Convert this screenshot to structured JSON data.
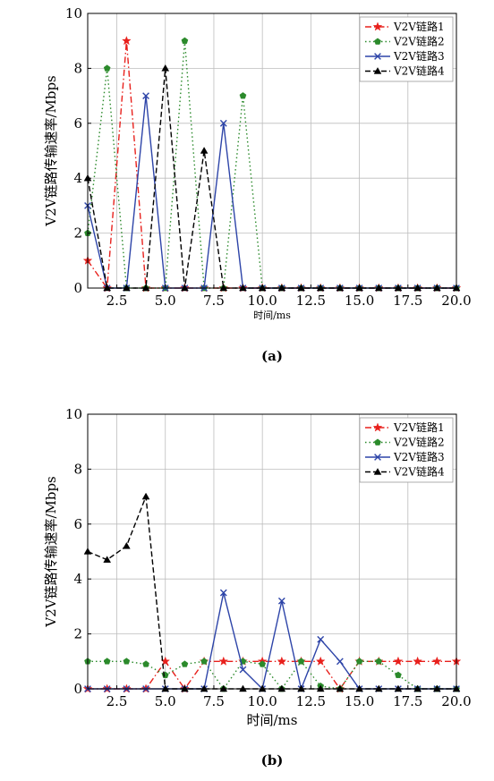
{
  "colors": {
    "series": [
      "#e8201c",
      "#2b8a2b",
      "#2d44a8",
      "#000000"
    ],
    "grid": "#bdbdbd",
    "axis": "#000000"
  },
  "chart_data": [
    {
      "id": "a",
      "type": "line",
      "panel_label": "(a)",
      "title": "",
      "xlabel": "时间/ms",
      "ylabel": "V2V链路传输速率/Mbps",
      "xlim": [
        1,
        20
      ],
      "ylim": [
        0,
        10
      ],
      "xticks": [
        2.5,
        5.0,
        7.5,
        10.0,
        12.5,
        15.0,
        17.5,
        20.0
      ],
      "xtick_labels": [
        "2.5",
        "5.0",
        "7.5",
        "10.0",
        "12.5",
        "15.0",
        "17.5",
        "20.0"
      ],
      "yticks": [
        0,
        2,
        4,
        6,
        8,
        10
      ],
      "ytick_labels": [
        "0",
        "2",
        "4",
        "6",
        "8",
        "10"
      ],
      "grid": true,
      "legend_position": "top-right",
      "series": [
        {
          "name": "V2V链路1",
          "marker": "star",
          "dash": "dashdot",
          "x": [
            1,
            2,
            3,
            4,
            5,
            6,
            7,
            8,
            9,
            10,
            11,
            12,
            13,
            14,
            15,
            16,
            17,
            18,
            19,
            20
          ],
          "y": [
            1,
            0,
            9,
            0,
            0,
            0,
            0,
            0,
            0,
            0,
            0,
            0,
            0,
            0,
            0,
            0,
            0,
            0,
            0,
            0
          ]
        },
        {
          "name": "V2V链路2",
          "marker": "pentagon",
          "dash": "dotted",
          "x": [
            1,
            2,
            3,
            4,
            5,
            6,
            7,
            8,
            9,
            10,
            11,
            12,
            13,
            14,
            15,
            16,
            17,
            18,
            19,
            20
          ],
          "y": [
            2,
            8,
            0,
            0,
            0,
            9,
            0,
            0,
            7,
            0,
            0,
            0,
            0,
            0,
            0,
            0,
            0,
            0,
            0,
            0
          ]
        },
        {
          "name": "V2V链路3",
          "marker": "x",
          "dash": "solid",
          "x": [
            1,
            2,
            3,
            4,
            5,
            6,
            7,
            8,
            9,
            10,
            11,
            12,
            13,
            14,
            15,
            16,
            17,
            18,
            19,
            20
          ],
          "y": [
            3,
            0,
            0,
            7,
            0,
            0,
            0,
            6,
            0,
            0,
            0,
            0,
            0,
            0,
            0,
            0,
            0,
            0,
            0,
            0
          ]
        },
        {
          "name": "V2V链路4",
          "marker": "triangle",
          "dash": "dashed",
          "x": [
            1,
            2,
            3,
            4,
            5,
            6,
            7,
            8,
            9,
            10,
            11,
            12,
            13,
            14,
            15,
            16,
            17,
            18,
            19,
            20
          ],
          "y": [
            4,
            0,
            0,
            0,
            8,
            0,
            5,
            0,
            0,
            0,
            0,
            0,
            0,
            0,
            0,
            0,
            0,
            0,
            0,
            0
          ]
        }
      ]
    },
    {
      "id": "b",
      "type": "line",
      "panel_label": "(b)",
      "title": "",
      "xlabel": "时间/ms",
      "ylabel": "V2V链路传输速率/Mbps",
      "xlim": [
        1,
        20
      ],
      "ylim": [
        0,
        10
      ],
      "xticks": [
        2.5,
        5.0,
        7.5,
        10.0,
        12.5,
        15.0,
        17.5,
        20.0
      ],
      "xtick_labels": [
        "2.5",
        "5.0",
        "7.5",
        "10.0",
        "12.5",
        "15.0",
        "17.5",
        "20.0"
      ],
      "yticks": [
        0,
        2,
        4,
        6,
        8,
        10
      ],
      "ytick_labels": [
        "0",
        "2",
        "4",
        "6",
        "8",
        "10"
      ],
      "grid": true,
      "legend_position": "top-right",
      "series": [
        {
          "name": "V2V链路1",
          "marker": "star",
          "dash": "dashdot",
          "x": [
            1,
            2,
            3,
            4,
            5,
            6,
            7,
            8,
            9,
            10,
            11,
            12,
            13,
            14,
            15,
            16,
            17,
            18,
            19,
            20
          ],
          "y": [
            0,
            0,
            0,
            0,
            1,
            0,
            1,
            1,
            1,
            1,
            1,
            1,
            1,
            0,
            1,
            1,
            1,
            1,
            1,
            1
          ]
        },
        {
          "name": "V2V链路2",
          "marker": "pentagon",
          "dash": "dotted",
          "x": [
            1,
            2,
            3,
            4,
            5,
            6,
            7,
            8,
            9,
            10,
            11,
            12,
            13,
            14,
            15,
            16,
            17,
            18,
            19,
            20
          ],
          "y": [
            1,
            1,
            1,
            0.9,
            0.5,
            0.9,
            1,
            0,
            1,
            0.9,
            0,
            1,
            0.1,
            0,
            1,
            1,
            0.5,
            0,
            0,
            0
          ]
        },
        {
          "name": "V2V链路3",
          "marker": "x",
          "dash": "solid",
          "x": [
            1,
            2,
            3,
            4,
            5,
            6,
            7,
            8,
            9,
            10,
            11,
            12,
            13,
            14,
            15,
            16,
            17,
            18,
            19,
            20
          ],
          "y": [
            0,
            0,
            0,
            0,
            0,
            0,
            0,
            3.5,
            0.7,
            0,
            3.2,
            0,
            1.8,
            1,
            0,
            0,
            0,
            0,
            0,
            0
          ]
        },
        {
          "name": "V2V链路4",
          "marker": "triangle",
          "dash": "dashed",
          "x": [
            1,
            2,
            3,
            4,
            5,
            6,
            7,
            8,
            9,
            10,
            11,
            12,
            13,
            14,
            15,
            16,
            17,
            18,
            19,
            20
          ],
          "y": [
            5,
            4.7,
            5.2,
            7,
            0,
            0,
            0,
            0,
            0,
            0,
            0,
            0,
            0,
            0,
            0,
            0,
            0,
            0,
            0,
            0
          ]
        }
      ]
    }
  ]
}
